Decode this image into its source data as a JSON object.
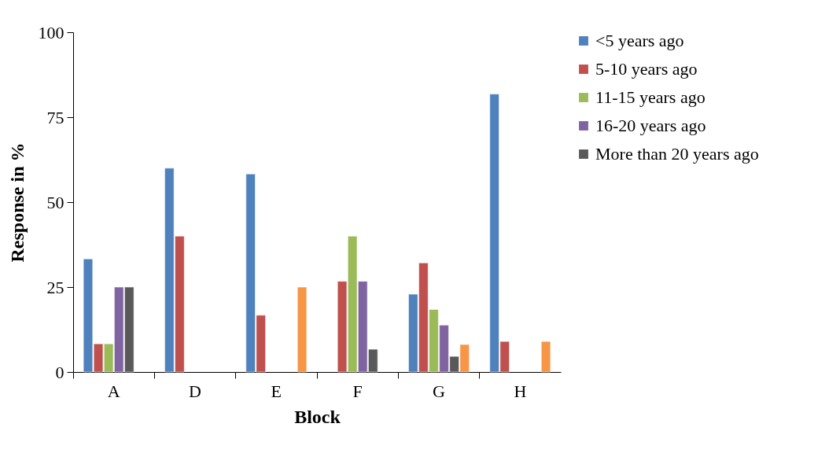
{
  "chart_data": {
    "type": "bar",
    "xlabel": "Block",
    "ylabel": "Response in %",
    "categories": [
      "A",
      "D",
      "E",
      "F",
      "G",
      "H"
    ],
    "series": [
      {
        "name": "<5 years ago",
        "color": "#4f81bd",
        "values": [
          33.3,
          60,
          58.3,
          null,
          22.9,
          81.8
        ]
      },
      {
        "name": "5-10 years ago",
        "color": "#c0504d",
        "values": [
          8.3,
          40,
          16.7,
          26.7,
          32.1,
          9.0
        ]
      },
      {
        "name": "11-15 years ago",
        "color": "#9bbb59",
        "values": [
          8.3,
          null,
          null,
          40,
          18.4,
          null
        ]
      },
      {
        "name": "16-20 years ago",
        "color": "#8064a2",
        "values": [
          25,
          null,
          null,
          26.7,
          13.8,
          null
        ]
      },
      {
        "name": "More than 20 years ago",
        "color": "#595959",
        "values": [
          25,
          null,
          null,
          6.7,
          4.6,
          null
        ]
      },
      {
        "color": "#f79646",
        "values": [
          null,
          null,
          25,
          null,
          8.1,
          9.0
        ]
      }
    ],
    "ylim": [
      0,
      100
    ],
    "yticks": [
      0,
      25,
      50,
      75,
      100
    ],
    "grid": false,
    "legend": "right"
  }
}
